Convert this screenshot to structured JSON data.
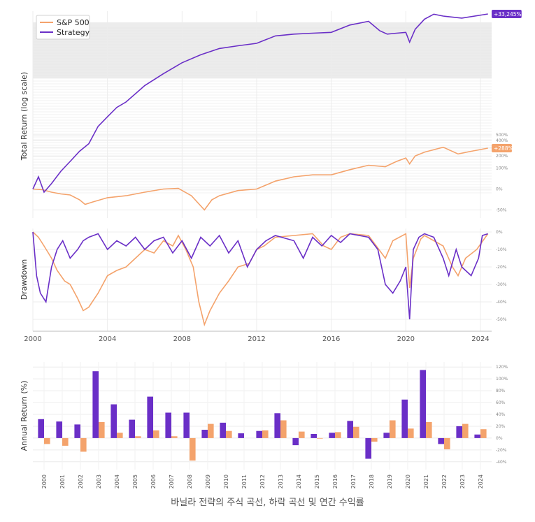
{
  "caption": "바닐라 전략의 주식 곡선, 하락 곡선 및 연간 수익률",
  "colors": {
    "sp500": "#f4a36c",
    "strategy": "#6a2fc7",
    "grid": "#ececec",
    "axis": "#888888"
  },
  "chart_data": [
    {
      "type": "line",
      "title": "",
      "ylabel": "Total Return (log scale)",
      "yscale": "log",
      "legend_position": "top-left",
      "grid": true,
      "yticks": [
        "-50%",
        "0%",
        "100%",
        "200%",
        "300%",
        "400%",
        "500%"
      ],
      "ytick_values": [
        -50,
        0,
        100,
        200,
        300,
        400,
        500
      ],
      "end_labels": [
        "+33,245%",
        "+288%"
      ],
      "series": [
        {
          "name": "S&P 500",
          "x": [
            2000.0,
            2000.5,
            2001.0,
            2001.5,
            2002.0,
            2002.5,
            2002.8,
            2003.2,
            2004.0,
            2005.0,
            2006.0,
            2007.0,
            2007.8,
            2008.5,
            2009.2,
            2009.6,
            2010.0,
            2011.0,
            2012.0,
            2013.0,
            2014.0,
            2015.0,
            2016.0,
            2017.0,
            2018.0,
            2018.9,
            2019.5,
            2020.0,
            2020.2,
            2020.5,
            2021.0,
            2022.0,
            2022.8,
            2023.5,
            2024.4
          ],
          "values": [
            0,
            -2,
            -10,
            -15,
            -18,
            -30,
            -40,
            -35,
            -25,
            -20,
            -10,
            0,
            2,
            -20,
            -50,
            -30,
            -20,
            -5,
            0,
            30,
            50,
            60,
            60,
            90,
            120,
            110,
            150,
            180,
            130,
            200,
            240,
            300,
            220,
            250,
            288
          ]
        },
        {
          "name": "Strategy",
          "x": [
            2000.0,
            2000.3,
            2000.6,
            2001.0,
            2001.5,
            2002.0,
            2002.5,
            2003.0,
            2003.5,
            2004.0,
            2004.5,
            2005.0,
            2006.0,
            2007.0,
            2008.0,
            2009.0,
            2010.0,
            2011.0,
            2012.0,
            2013.0,
            2014.0,
            2015.0,
            2016.0,
            2017.0,
            2018.0,
            2018.6,
            2019.0,
            2019.5,
            2020.0,
            2020.2,
            2020.5,
            2021.0,
            2021.5,
            2022.0,
            2023.0,
            2024.4
          ],
          "values": [
            0,
            50,
            -10,
            20,
            80,
            150,
            250,
            350,
            700,
            1000,
            1400,
            1700,
            3000,
            4500,
            6500,
            8500,
            10500,
            11500,
            12500,
            16000,
            17000,
            17500,
            18000,
            23000,
            26000,
            19000,
            17000,
            17500,
            18000,
            13000,
            20000,
            28000,
            33000,
            31000,
            29000,
            33245
          ]
        }
      ]
    },
    {
      "type": "line",
      "title": "",
      "ylabel": "Drawdown",
      "grid": true,
      "yticks": [
        "0%",
        "-10%",
        "-20%",
        "-30%",
        "-40%",
        "-50%"
      ],
      "ytick_values": [
        0,
        -10,
        -20,
        -30,
        -40,
        -50
      ],
      "xticks": [
        "2000",
        "2004",
        "2008",
        "2012",
        "2016",
        "2020",
        "2024"
      ],
      "xlim": [
        2000,
        2024.6
      ],
      "ylim": [
        -56,
        0
      ],
      "series": [
        {
          "name": "S&P 500",
          "x": [
            2000.0,
            2000.3,
            2000.6,
            2001.0,
            2001.3,
            2001.7,
            2002.0,
            2002.4,
            2002.7,
            2003.0,
            2003.5,
            2004.0,
            2004.5,
            2005.0,
            2005.5,
            2006.0,
            2006.5,
            2007.0,
            2007.5,
            2007.8,
            2008.2,
            2008.6,
            2008.9,
            2009.2,
            2009.5,
            2010.0,
            2010.5,
            2011.0,
            2011.6,
            2012.0,
            2012.4,
            2013.0,
            2014.0,
            2015.0,
            2015.6,
            2016.0,
            2016.5,
            2017.0,
            2018.0,
            2018.9,
            2019.3,
            2020.0,
            2020.2,
            2020.4,
            2020.8,
            2021.0,
            2022.0,
            2022.5,
            2022.8,
            2023.2,
            2023.8,
            2024.4
          ],
          "values": [
            0,
            -3,
            -8,
            -15,
            -22,
            -28,
            -30,
            -38,
            -45,
            -43,
            -35,
            -25,
            -22,
            -20,
            -15,
            -10,
            -12,
            -5,
            -8,
            -2,
            -10,
            -20,
            -40,
            -53,
            -45,
            -35,
            -28,
            -20,
            -18,
            -10,
            -8,
            -3,
            -2,
            -1,
            -8,
            -10,
            -3,
            -1,
            -2,
            -15,
            -5,
            -1,
            -32,
            -15,
            -4,
            -2,
            -8,
            -20,
            -25,
            -15,
            -10,
            -1
          ]
        },
        {
          "name": "Strategy",
          "x": [
            2000.0,
            2000.2,
            2000.4,
            2000.7,
            2001.0,
            2001.3,
            2001.6,
            2002.0,
            2002.4,
            2002.7,
            2003.0,
            2003.5,
            2004.0,
            2004.5,
            2005.0,
            2005.5,
            2006.0,
            2006.5,
            2007.0,
            2007.5,
            2008.0,
            2008.5,
            2009.0,
            2009.5,
            2010.0,
            2010.5,
            2011.0,
            2011.5,
            2012.0,
            2012.5,
            2013.0,
            2014.0,
            2014.5,
            2015.0,
            2015.5,
            2016.0,
            2016.5,
            2017.0,
            2018.0,
            2018.5,
            2018.9,
            2019.3,
            2019.7,
            2020.0,
            2020.2,
            2020.4,
            2020.7,
            2021.0,
            2021.5,
            2022.0,
            2022.3,
            2022.7,
            2023.0,
            2023.5,
            2023.9,
            2024.1,
            2024.4
          ],
          "values": [
            0,
            -25,
            -35,
            -40,
            -20,
            -10,
            -5,
            -15,
            -10,
            -5,
            -3,
            -1,
            -10,
            -5,
            -8,
            -3,
            -10,
            -5,
            -3,
            -12,
            -5,
            -15,
            -3,
            -8,
            -2,
            -12,
            -5,
            -20,
            -10,
            -5,
            -2,
            -5,
            -15,
            -3,
            -8,
            -2,
            -6,
            -1,
            -3,
            -10,
            -30,
            -35,
            -28,
            -20,
            -50,
            -10,
            -3,
            -1,
            -3,
            -15,
            -25,
            -10,
            -20,
            -25,
            -15,
            -2,
            -1
          ]
        }
      ]
    },
    {
      "type": "bar",
      "title": "",
      "ylabel": "Annual Return (%)",
      "grid": true,
      "ylim": [
        -45,
        125
      ],
      "yticks": [
        "120%",
        "100%",
        "80%",
        "60%",
        "40%",
        "20%",
        "0%",
        "-20%",
        "-40%"
      ],
      "ytick_values": [
        120,
        100,
        80,
        60,
        40,
        20,
        0,
        -20,
        -40
      ],
      "categories": [
        "2000",
        "2001",
        "2002",
        "2003",
        "2004",
        "2005",
        "2006",
        "2007",
        "2008",
        "2009",
        "2010",
        "2011",
        "2012",
        "2013",
        "2014",
        "2015",
        "2016",
        "2017",
        "2018",
        "2019",
        "2020",
        "2021",
        "2022",
        "2023",
        "2024"
      ],
      "series": [
        {
          "name": "Strategy",
          "values": [
            32,
            28,
            23,
            113,
            57,
            31,
            70,
            43,
            43,
            14,
            26,
            8,
            12,
            42,
            -12,
            7,
            9,
            29,
            -35,
            9,
            65,
            115,
            -10,
            20,
            6
          ]
        },
        {
          "name": "S&P 500",
          "values": [
            -10,
            -13,
            -23,
            27,
            9,
            3,
            13,
            3,
            -38,
            24,
            12,
            0,
            13,
            30,
            11,
            -1,
            10,
            19,
            -6,
            30,
            16,
            27,
            -19,
            24,
            15
          ]
        }
      ]
    }
  ]
}
